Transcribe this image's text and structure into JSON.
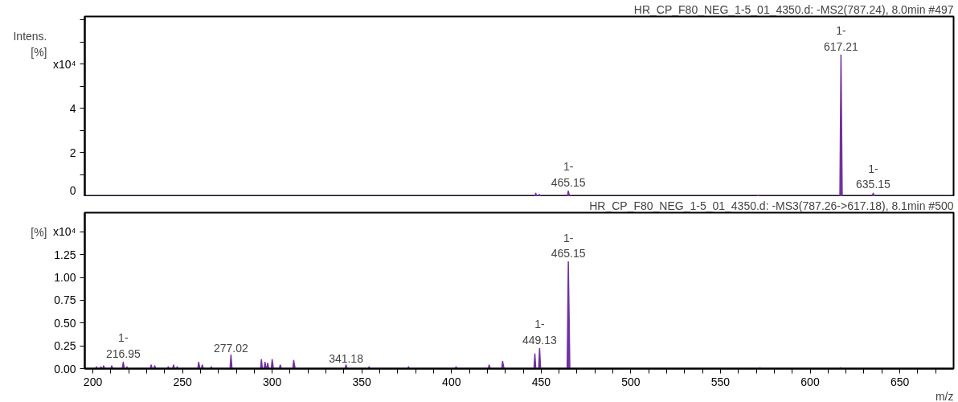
{
  "chart_data": [
    {
      "type": "area",
      "title": "HR_CP_F80_NEG_1-5_01_4350.d: -MS2(787.24), 8.0min #497",
      "ylabel": "Intens.\n[%]",
      "color": "#7030a0",
      "tick_labels": "y",
      "grid": false,
      "x": [
        195.5,
        446.4,
        447,
        447.6,
        448.4,
        449,
        449.6,
        464.6,
        465.15,
        465.9,
        570.4,
        571,
        571.6,
        616.6,
        617.21,
        617.9,
        634.6,
        635.15,
        636,
        680
      ],
      "values": [
        0,
        0,
        0.15,
        0,
        0,
        0.1,
        0,
        0,
        0.25,
        0,
        0,
        0.05,
        0,
        0,
        6.4,
        0,
        0,
        0.15,
        0,
        0
      ],
      "xlim": [
        195.5,
        680
      ],
      "ylim": [
        0,
        8.15
      ],
      "xticks": [
        200,
        250,
        300,
        350,
        400,
        450,
        500,
        550,
        600,
        650
      ],
      "yticks": [
        0,
        {
          "value": 1,
          "label": null
        },
        2,
        {
          "value": 3,
          "label": null
        },
        4,
        {
          "value": 5,
          "label": null
        },
        {
          "value": 6,
          "label": "x10⁴"
        },
        {
          "value": 7,
          "label": null
        },
        {
          "value": 8,
          "label": null
        }
      ],
      "annotations": [
        {
          "text": "1-\n617.21",
          "x": 617.21,
          "y": 6.4
        },
        {
          "text": "1-\n465.15",
          "x": 465.15,
          "y": 0.25
        },
        {
          "text": "1-\n635.15",
          "x": 635.15,
          "y": 0.15
        }
      ]
    },
    {
      "type": "area",
      "title": "HR_CP_F80_NEG_1-5_01_4350.d: -MS3(787.26->617.18), 8.1min #500",
      "ylabel": "[%]",
      "xlabel": "m/z",
      "color": "#7030a0",
      "grid": false,
      "x": [
        195.5,
        201.5,
        202,
        202.5,
        204,
        204.5,
        205,
        205.5,
        206,
        206.7,
        210,
        210.5,
        211.2,
        216.4,
        216.95,
        217.6,
        218.6,
        219,
        219.5,
        232,
        232.5,
        233.1,
        234,
        234.5,
        235.2,
        241.5,
        242,
        242.6,
        244.5,
        245,
        245.6,
        246.5,
        247,
        247.6,
        258.5,
        259,
        259.7,
        260.5,
        261,
        261.7,
        265.5,
        266,
        266.6,
        276.5,
        277.02,
        277.6,
        293.5,
        294,
        294.5,
        295.5,
        296,
        296.7,
        297.1,
        297.5,
        298.1,
        299.5,
        300,
        300.7,
        304,
        304.5,
        305.2,
        311.5,
        312,
        312.8,
        340.6,
        341.18,
        341.8,
        353.5,
        354,
        354.7,
        375.5,
        376,
        376.6,
        402,
        402.5,
        403.2,
        420.5,
        421,
        421.7,
        428,
        428.5,
        429.3,
        446,
        446.5,
        447,
        448.6,
        449.13,
        449.7,
        464.5,
        465.15,
        466,
        571.5,
        572,
        572.6,
        616.5,
        617,
        617.6,
        680
      ],
      "values": [
        0,
        0,
        0.02,
        0,
        0,
        0.02,
        0,
        0,
        0.03,
        0,
        0,
        0.03,
        0,
        0,
        0.07,
        0,
        0,
        0.02,
        0,
        0,
        0.04,
        0,
        0,
        0.03,
        0,
        0,
        0.02,
        0,
        0,
        0.04,
        0,
        0,
        0.02,
        0,
        0,
        0.07,
        0,
        0,
        0.04,
        0,
        0,
        0.02,
        0,
        0,
        0.15,
        0,
        0,
        0.1,
        0,
        0,
        0.07,
        0,
        0,
        0.06,
        0,
        0,
        0.1,
        0,
        0,
        0.04,
        0,
        0,
        0.09,
        0,
        0,
        0.04,
        0,
        0,
        0.02,
        0,
        0,
        0.02,
        0,
        0,
        0.02,
        0,
        0,
        0.04,
        0,
        0,
        0.08,
        0,
        0,
        0.16,
        0,
        0,
        0.22,
        0,
        0,
        1.17,
        0,
        0,
        0.01,
        0,
        0,
        0.01,
        0,
        0
      ],
      "xlim": [
        195.5,
        680
      ],
      "ylim": [
        0,
        1.71
      ],
      "xticks": [
        200,
        {
          "value": 210,
          "label": null
        },
        {
          "value": 220,
          "label": null
        },
        {
          "value": 230,
          "label": null
        },
        {
          "value": 240,
          "label": null
        },
        250,
        {
          "value": 260,
          "label": null
        },
        {
          "value": 270,
          "label": null
        },
        {
          "value": 280,
          "label": null
        },
        {
          "value": 290,
          "label": null
        },
        300,
        {
          "value": 310,
          "label": null
        },
        {
          "value": 320,
          "label": null
        },
        {
          "value": 330,
          "label": null
        },
        {
          "value": 340,
          "label": null
        },
        350,
        {
          "value": 360,
          "label": null
        },
        {
          "value": 370,
          "label": null
        },
        {
          "value": 380,
          "label": null
        },
        {
          "value": 390,
          "label": null
        },
        400,
        {
          "value": 410,
          "label": null
        },
        {
          "value": 420,
          "label": null
        },
        {
          "value": 430,
          "label": null
        },
        {
          "value": 440,
          "label": null
        },
        450,
        {
          "value": 460,
          "label": null
        },
        {
          "value": 470,
          "label": null
        },
        {
          "value": 480,
          "label": null
        },
        {
          "value": 490,
          "label": null
        },
        500,
        {
          "value": 510,
          "label": null
        },
        {
          "value": 520,
          "label": null
        },
        {
          "value": 530,
          "label": null
        },
        {
          "value": 540,
          "label": null
        },
        550,
        {
          "value": 560,
          "label": null
        },
        {
          "value": 570,
          "label": null
        },
        {
          "value": 580,
          "label": null
        },
        {
          "value": 590,
          "label": null
        },
        600,
        {
          "value": 610,
          "label": null
        },
        {
          "value": 620,
          "label": null
        },
        {
          "value": 630,
          "label": null
        },
        {
          "value": 640,
          "label": null
        },
        650,
        {
          "value": 660,
          "label": null
        },
        {
          "value": 670,
          "label": null
        }
      ],
      "yticks": [
        {
          "value": 0,
          "label": "0.00"
        },
        0.25,
        {
          "value": 0.5,
          "label": "0.50"
        },
        0.75,
        {
          "value": 1,
          "label": "1.00"
        },
        1.25,
        {
          "value": 1.5,
          "label": "x10⁴"
        }
      ],
      "annotations": [
        {
          "text": "1-\n465.15",
          "x": 465.15,
          "y": 1.17
        },
        {
          "text": "1-\n449.13",
          "x": 449.13,
          "y": 0.22
        },
        {
          "text": "1-\n216.95",
          "x": 216.95,
          "y": 0.07
        },
        {
          "text": "277.02",
          "x": 277.02,
          "y": 0.15
        },
        {
          "text": "341.18",
          "x": 341.18,
          "y": 0.04
        }
      ]
    }
  ]
}
